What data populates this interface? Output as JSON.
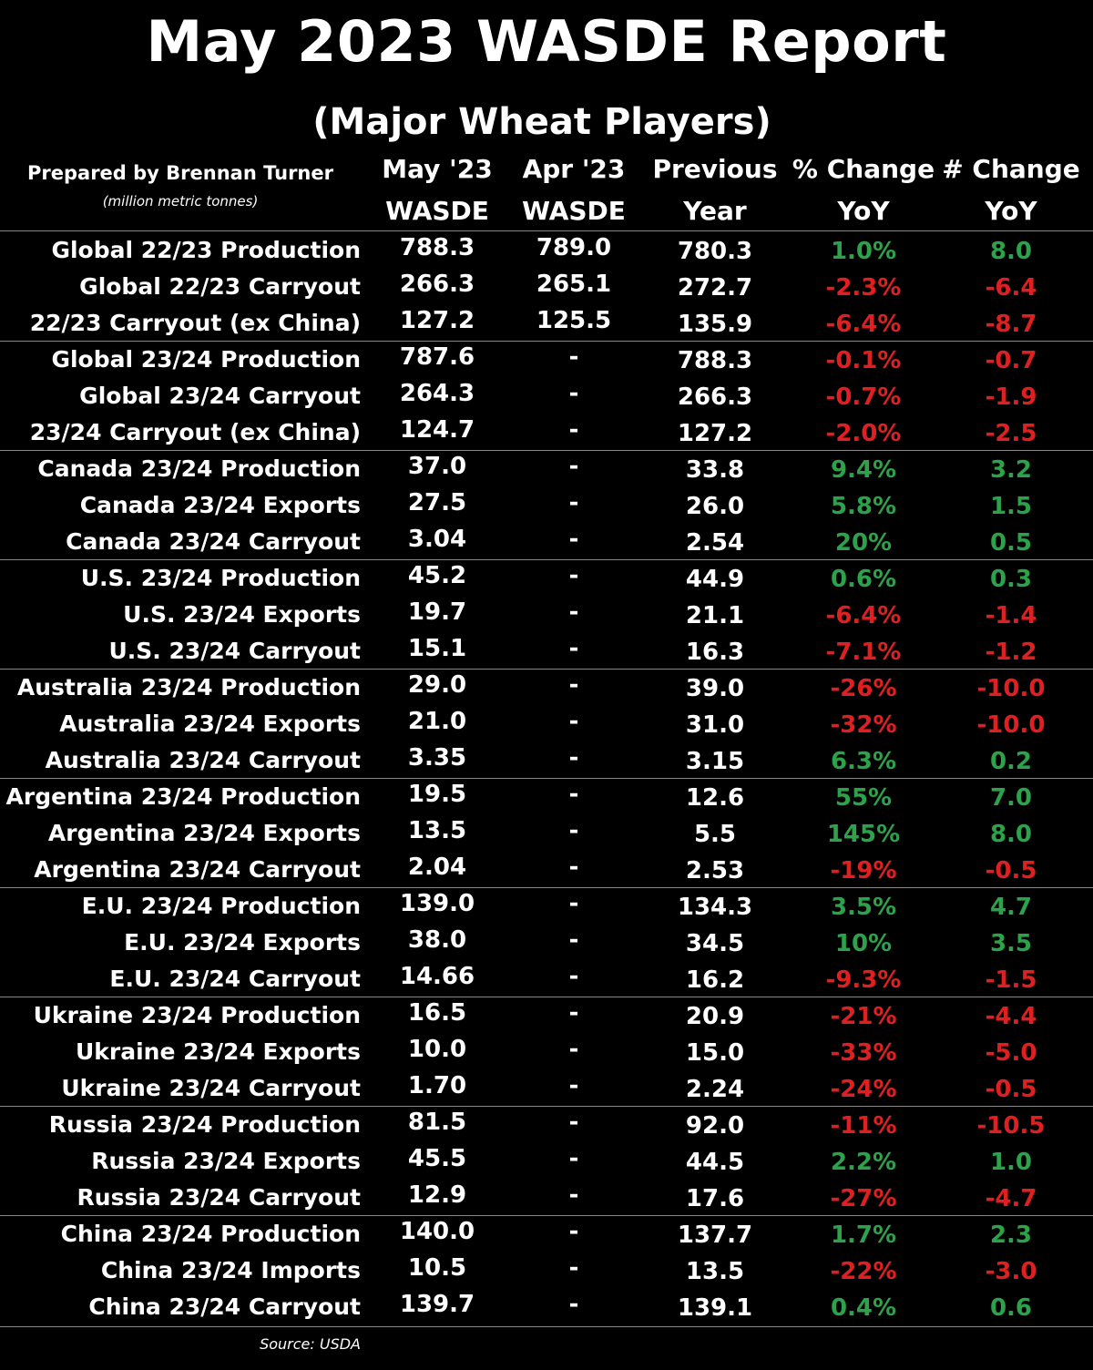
{
  "title": "May 2023 WASDE Report",
  "subtitle": "(Major Wheat Players)",
  "prepared_by": "Prepared by Brennan Turner",
  "units": "(million metric tonnes)",
  "columns": {
    "may": [
      "May '23",
      "WASDE"
    ],
    "apr": [
      "Apr '23",
      "WASDE"
    ],
    "prev": [
      "Previous",
      "Year"
    ],
    "pct": [
      "% Change",
      "YoY"
    ],
    "num": [
      "# Change",
      "YoY"
    ]
  },
  "colors": {
    "positive": "#2ca24a",
    "negative": "#e02020",
    "background": "#000000"
  },
  "rows": [
    {
      "label": "Global 22/23 Production",
      "may": "788.3",
      "apr": "789.0",
      "prev": "780.3",
      "pct": "1.0%",
      "num": "8.0",
      "sign": "pos"
    },
    {
      "label": "Global 22/23 Carryout",
      "may": "266.3",
      "apr": "265.1",
      "prev": "272.7",
      "pct": "-2.3%",
      "num": "-6.4",
      "sign": "neg"
    },
    {
      "label": "22/23 Carryout (ex China)",
      "may": "127.2",
      "apr": "125.5",
      "prev": "135.9",
      "pct": "-6.4%",
      "num": "-8.7",
      "sign": "neg"
    },
    {
      "label": "Global 23/24 Production",
      "may": "787.6",
      "apr": "-",
      "prev": "788.3",
      "pct": "-0.1%",
      "num": "-0.7",
      "sign": "neg"
    },
    {
      "label": "Global 23/24 Carryout",
      "may": "264.3",
      "apr": "-",
      "prev": "266.3",
      "pct": "-0.7%",
      "num": "-1.9",
      "sign": "neg"
    },
    {
      "label": "23/24 Carryout (ex China)",
      "may": "124.7",
      "apr": "-",
      "prev": "127.2",
      "pct": "-2.0%",
      "num": "-2.5",
      "sign": "neg"
    },
    {
      "label": "Canada 23/24 Production",
      "may": "37.0",
      "apr": "-",
      "prev": "33.8",
      "pct": "9.4%",
      "num": "3.2",
      "sign": "pos"
    },
    {
      "label": "Canada 23/24 Exports",
      "may": "27.5",
      "apr": "-",
      "prev": "26.0",
      "pct": "5.8%",
      "num": "1.5",
      "sign": "pos"
    },
    {
      "label": "Canada 23/24 Carryout",
      "may": "3.04",
      "apr": "-",
      "prev": "2.54",
      "pct": "20%",
      "num": "0.5",
      "sign": "pos"
    },
    {
      "label": "U.S. 23/24 Production",
      "may": "45.2",
      "apr": "-",
      "prev": "44.9",
      "pct": "0.6%",
      "num": "0.3",
      "sign": "pos"
    },
    {
      "label": "U.S. 23/24 Exports",
      "may": "19.7",
      "apr": "-",
      "prev": "21.1",
      "pct": "-6.4%",
      "num": "-1.4",
      "sign": "neg"
    },
    {
      "label": "U.S. 23/24 Carryout",
      "may": "15.1",
      "apr": "-",
      "prev": "16.3",
      "pct": "-7.1%",
      "num": "-1.2",
      "sign": "neg"
    },
    {
      "label": "Australia 23/24 Production",
      "may": "29.0",
      "apr": "-",
      "prev": "39.0",
      "pct": "-26%",
      "num": "-10.0",
      "sign": "neg"
    },
    {
      "label": "Australia 23/24 Exports",
      "may": "21.0",
      "apr": "-",
      "prev": "31.0",
      "pct": "-32%",
      "num": "-10.0",
      "sign": "neg"
    },
    {
      "label": "Australia 23/24 Carryout",
      "may": "3.35",
      "apr": "-",
      "prev": "3.15",
      "pct": "6.3%",
      "num": "0.2",
      "sign": "pos"
    },
    {
      "label": "Argentina 23/24 Production",
      "may": "19.5",
      "apr": "-",
      "prev": "12.6",
      "pct": "55%",
      "num": "7.0",
      "sign": "pos"
    },
    {
      "label": "Argentina 23/24 Exports",
      "may": "13.5",
      "apr": "-",
      "prev": "5.5",
      "pct": "145%",
      "num": "8.0",
      "sign": "pos"
    },
    {
      "label": "Argentina 23/24 Carryout",
      "may": "2.04",
      "apr": "-",
      "prev": "2.53",
      "pct": "-19%",
      "num": "-0.5",
      "sign": "neg"
    },
    {
      "label": "E.U. 23/24 Production",
      "may": "139.0",
      "apr": "-",
      "prev": "134.3",
      "pct": "3.5%",
      "num": "4.7",
      "sign": "pos"
    },
    {
      "label": "E.U. 23/24 Exports",
      "may": "38.0",
      "apr": "-",
      "prev": "34.5",
      "pct": "10%",
      "num": "3.5",
      "sign": "pos"
    },
    {
      "label": "E.U. 23/24 Carryout",
      "may": "14.66",
      "apr": "-",
      "prev": "16.2",
      "pct": "-9.3%",
      "num": "-1.5",
      "sign": "neg"
    },
    {
      "label": "Ukraine 23/24 Production",
      "may": "16.5",
      "apr": "-",
      "prev": "20.9",
      "pct": "-21%",
      "num": "-4.4",
      "sign": "neg"
    },
    {
      "label": "Ukraine 23/24 Exports",
      "may": "10.0",
      "apr": "-",
      "prev": "15.0",
      "pct": "-33%",
      "num": "-5.0",
      "sign": "neg"
    },
    {
      "label": "Ukraine 23/24 Carryout",
      "may": "1.70",
      "apr": "-",
      "prev": "2.24",
      "pct": "-24%",
      "num": "-0.5",
      "sign": "neg"
    },
    {
      "label": "Russia 23/24 Production",
      "may": "81.5",
      "apr": "-",
      "prev": "92.0",
      "pct": "-11%",
      "num": "-10.5",
      "sign": "neg"
    },
    {
      "label": "Russia 23/24 Exports",
      "may": "45.5",
      "apr": "-",
      "prev": "44.5",
      "pct": "2.2%",
      "num": "1.0",
      "sign": "pos"
    },
    {
      "label": "Russia 23/24 Carryout",
      "may": "12.9",
      "apr": "-",
      "prev": "17.6",
      "pct": "-27%",
      "num": "-4.7",
      "sign": "neg"
    },
    {
      "label": "China 23/24 Production",
      "may": "140.0",
      "apr": "-",
      "prev": "137.7",
      "pct": "1.7%",
      "num": "2.3",
      "sign": "pos"
    },
    {
      "label": "China 23/24 Imports",
      "may": "10.5",
      "apr": "-",
      "prev": "13.5",
      "pct": "-22%",
      "num": "-3.0",
      "sign": "neg"
    },
    {
      "label": "China 23/24 Carryout",
      "may": "139.7",
      "apr": "-",
      "prev": "139.1",
      "pct": "0.4%",
      "num": "0.6",
      "sign": "pos"
    }
  ],
  "source": "Source: USDA"
}
